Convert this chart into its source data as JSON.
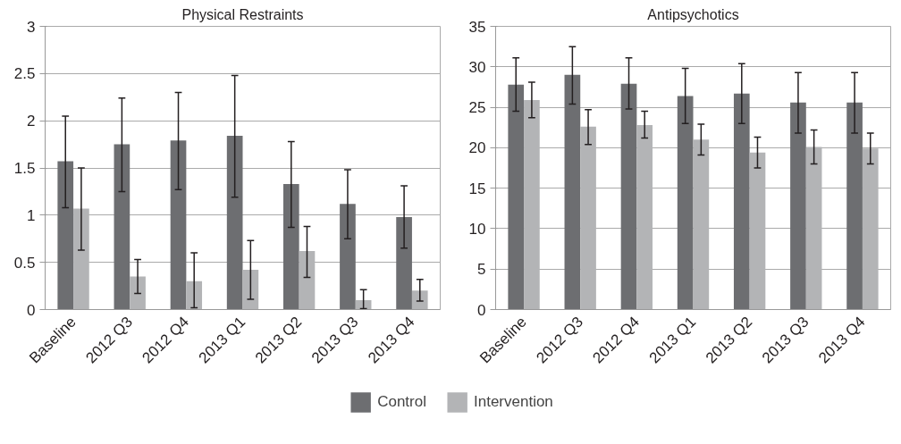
{
  "chart_data": [
    {
      "type": "bar",
      "title": "Physical Restraints",
      "categories": [
        "Baseline",
        "2012 Q3",
        "2012 Q4",
        "2013 Q1",
        "2013 Q2",
        "2013 Q3",
        "2013 Q4"
      ],
      "ylim": [
        0,
        3
      ],
      "yticks": [
        0,
        0.5,
        1,
        1.5,
        2,
        2.5,
        3
      ],
      "grid": "y",
      "legend": "bottom",
      "series": [
        {
          "name": "Control",
          "color": "#6d6e71",
          "values": [
            1.57,
            1.75,
            1.79,
            1.84,
            1.33,
            1.12,
            0.98
          ],
          "errors": [
            [
              1.08,
              2.05
            ],
            [
              1.25,
              2.24
            ],
            [
              1.27,
              2.3
            ],
            [
              1.19,
              2.48
            ],
            [
              0.87,
              1.78
            ],
            [
              0.75,
              1.48
            ],
            [
              0.65,
              1.31
            ]
          ]
        },
        {
          "name": "Intervention",
          "color": "#b3b4b6",
          "values": [
            1.07,
            0.35,
            0.3,
            0.42,
            0.62,
            0.1,
            0.2
          ],
          "errors": [
            [
              0.63,
              1.5
            ],
            [
              0.17,
              0.53
            ],
            [
              0.02,
              0.6
            ],
            [
              0.11,
              0.73
            ],
            [
              0.34,
              0.88
            ],
            [
              0.01,
              0.21
            ],
            [
              0.09,
              0.32
            ]
          ]
        }
      ]
    },
    {
      "type": "bar",
      "title": "Antipsychotics",
      "categories": [
        "Baseline",
        "2012 Q3",
        "2012 Q4",
        "2013 Q1",
        "2013 Q2",
        "2013 Q3",
        "2013 Q4"
      ],
      "ylim": [
        0,
        35
      ],
      "yticks": [
        0,
        5,
        10,
        15,
        20,
        25,
        30,
        35
      ],
      "grid": "y",
      "legend": "bottom",
      "series": [
        {
          "name": "Control",
          "color": "#6d6e71",
          "values": [
            27.8,
            29,
            27.9,
            26.4,
            26.7,
            25.6,
            25.6
          ],
          "errors": [
            [
              24.5,
              31.1
            ],
            [
              25.4,
              32.5
            ],
            [
              24.8,
              31.1
            ],
            [
              23,
              29.8
            ],
            [
              23,
              30.4
            ],
            [
              21.8,
              29.3
            ],
            [
              21.8,
              29.3
            ]
          ]
        },
        {
          "name": "Intervention",
          "color": "#b3b4b6",
          "values": [
            25.9,
            22.6,
            22.8,
            21,
            19.4,
            20.1,
            19.9
          ],
          "errors": [
            [
              23.7,
              28.1
            ],
            [
              20.4,
              24.7
            ],
            [
              21.2,
              24.5
            ],
            [
              19.1,
              22.9
            ],
            [
              17.5,
              21.3
            ],
            [
              18,
              22.2
            ],
            [
              18,
              21.8
            ]
          ]
        }
      ]
    }
  ]
}
